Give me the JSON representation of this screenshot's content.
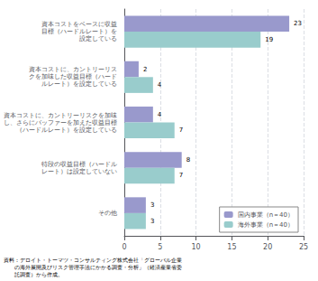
{
  "chart_data": {
    "type": "bar",
    "orientation": "horizontal",
    "categories": [
      "資本コストをベースに収益\n目標（ハードルレート）を\n設定している",
      "資本コストに、カントリーリス\nクを加味した収益目標（ハード\nルレート）を設定している",
      "資本コストに、カントリーリスクを加味\nし、さらにバッファーを加えた収益目標\n（ハードルレート）を設定している",
      "特段の収益目標（ハードル\nレート）は設定していない",
      "その他"
    ],
    "series": [
      {
        "name": "国内事業（n＝40）",
        "color": "#9999cc",
        "values": [
          23,
          2,
          4,
          8,
          3
        ]
      },
      {
        "name": "海外事業（n＝40）",
        "color": "#99cccc",
        "values": [
          19,
          4,
          7,
          7,
          3
        ]
      }
    ],
    "xlim": [
      0,
      25
    ],
    "xticks": [
      0,
      5,
      10,
      15,
      20,
      25
    ],
    "grid": true,
    "legend": "lower right",
    "data_labels": true,
    "annotations": [
      "資料：デロイト・トーマツ・コンサルティング株式会社「グローバル企業\n　　の海外展開及びリスク管理手法にかかる調査・分析」（経済産業省委\n　　託調査）から作成。"
    ]
  }
}
